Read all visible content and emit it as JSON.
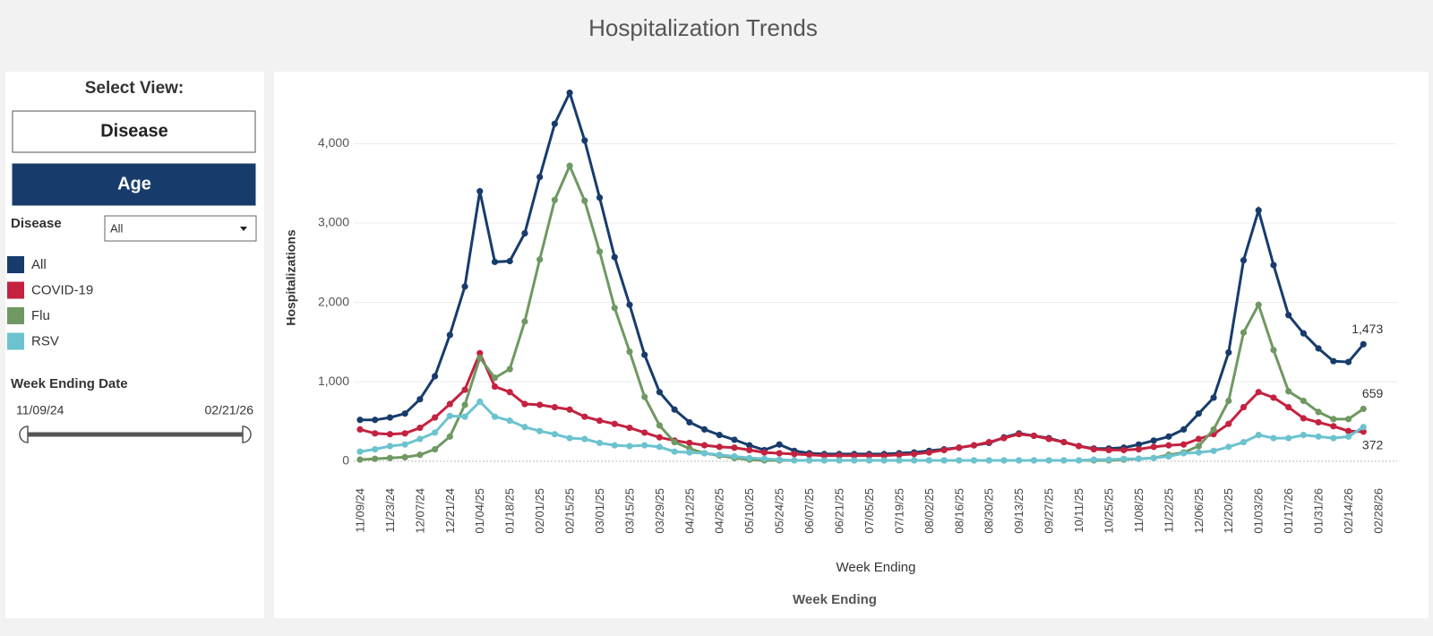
{
  "header": {
    "title": "Hospitalization Trends"
  },
  "controls": {
    "select_view_label": "Select View:",
    "buttons": [
      "Disease",
      "Age"
    ],
    "selected_button": 1,
    "filter_label": "Disease",
    "filter_value": "All",
    "date_label": "Week Ending Date",
    "date_range": [
      "11/09/24",
      "02/21/26"
    ]
  },
  "chart_data": {
    "type": "line",
    "ylabel": "Hospitalizations",
    "xlabel": "Week Ending",
    "caption": "Week Ending",
    "categories": [
      "11/09/24",
      null,
      "11/23/24",
      null,
      "12/07/24",
      null,
      "12/21/24",
      null,
      "01/04/25",
      null,
      "01/18/25",
      null,
      "02/01/25",
      null,
      "02/15/25",
      null,
      "03/01/25",
      null,
      "03/15/25",
      null,
      "03/29/25",
      null,
      "04/12/25",
      null,
      "04/26/25",
      null,
      "05/10/25",
      null,
      "05/24/25",
      null,
      "06/07/25",
      null,
      "06/21/25",
      null,
      "07/05/25",
      null,
      "07/19/25",
      null,
      "08/02/25",
      null,
      "08/16/25",
      null,
      "08/30/25",
      null,
      "09/13/25",
      null,
      "09/27/25",
      null,
      "10/11/25",
      null,
      "10/25/25",
      null,
      "11/08/25",
      null,
      "11/22/25",
      null,
      "12/06/25",
      null,
      "12/20/25",
      null,
      "01/03/26",
      null,
      "01/17/26",
      null,
      "01/31/26",
      null,
      "02/14/26",
      null,
      "02/28/26"
    ],
    "ylim": [
      -250,
      4850
    ],
    "yticks": [
      0,
      {
        "value": 1000,
        "label": "1,000"
      },
      {
        "value": 2000,
        "label": "2,000"
      },
      {
        "value": 3000,
        "label": "3,000"
      },
      {
        "value": 4000,
        "label": "4,000"
      }
    ],
    "grid": true,
    "series": [
      {
        "name": "All",
        "color": "#173c6c",
        "values": [
          520,
          520,
          550,
          600,
          780,
          1070,
          1590,
          2200,
          3400,
          2510,
          2520,
          2870,
          3580,
          4250,
          4640,
          4040,
          3320,
          2570,
          1970,
          1340,
          870,
          650,
          490,
          400,
          330,
          270,
          200,
          140,
          210,
          130,
          100,
          90,
          90,
          90,
          90,
          90,
          100,
          110,
          130,
          150,
          170,
          200,
          230,
          300,
          350,
          320,
          290,
          240,
          190,
          160,
          160,
          170,
          210,
          260,
          310,
          400,
          600,
          800,
          1370,
          2530,
          3160,
          2470,
          1840,
          1610,
          1420,
          1260,
          1250,
          1473,
          null
        ],
        "value_labels": [
          null,
          null,
          null,
          null,
          null,
          null,
          null,
          null,
          null,
          null,
          null,
          null,
          null,
          null,
          null,
          null,
          null,
          null,
          null,
          null,
          null,
          null,
          null,
          null,
          null,
          null,
          null,
          null,
          null,
          null,
          null,
          null,
          null,
          null,
          null,
          null,
          null,
          null,
          null,
          null,
          null,
          null,
          null,
          null,
          null,
          null,
          null,
          null,
          null,
          null,
          null,
          null,
          null,
          null,
          null,
          null,
          null,
          null,
          null,
          null,
          null,
          null,
          null,
          null,
          null,
          null,
          null,
          "1,473",
          null
        ]
      },
      {
        "name": "COVID-19",
        "color": "#c4223f",
        "values": [
          400,
          350,
          340,
          350,
          420,
          550,
          720,
          900,
          1360,
          940,
          870,
          720,
          710,
          680,
          650,
          560,
          510,
          470,
          420,
          360,
          300,
          260,
          230,
          200,
          180,
          170,
          140,
          110,
          100,
          90,
          80,
          70,
          70,
          70,
          70,
          70,
          80,
          90,
          110,
          140,
          170,
          200,
          240,
          290,
          340,
          320,
          280,
          240,
          190,
          150,
          140,
          140,
          150,
          180,
          200,
          210,
          280,
          340,
          470,
          680,
          870,
          800,
          680,
          540,
          490,
          440,
          380,
          372,
          null
        ],
        "value_labels": [
          null,
          null,
          null,
          null,
          null,
          null,
          null,
          null,
          null,
          null,
          null,
          null,
          null,
          null,
          null,
          null,
          null,
          null,
          null,
          null,
          null,
          null,
          null,
          null,
          null,
          null,
          null,
          null,
          null,
          null,
          null,
          null,
          null,
          null,
          null,
          null,
          null,
          null,
          null,
          null,
          null,
          null,
          null,
          null,
          null,
          null,
          null,
          null,
          null,
          null,
          null,
          null,
          null,
          null,
          null,
          null,
          null,
          null,
          null,
          null,
          null,
          null,
          null,
          null,
          null,
          null,
          null,
          "372",
          null
        ]
      },
      {
        "name": "Flu",
        "color": "#6f9862",
        "values": [
          20,
          30,
          40,
          50,
          80,
          150,
          310,
          710,
          1300,
          1050,
          1160,
          1760,
          2540,
          3290,
          3720,
          3280,
          2640,
          1930,
          1380,
          810,
          450,
          240,
          160,
          100,
          70,
          40,
          20,
          10,
          10,
          10,
          10,
          10,
          10,
          10,
          10,
          10,
          10,
          10,
          10,
          10,
          10,
          10,
          10,
          10,
          10,
          10,
          10,
          10,
          10,
          10,
          10,
          20,
          30,
          40,
          80,
          110,
          190,
          400,
          760,
          1620,
          1970,
          1400,
          880,
          760,
          620,
          530,
          530,
          659,
          null
        ],
        "value_labels": [
          null,
          null,
          null,
          null,
          null,
          null,
          null,
          null,
          null,
          null,
          null,
          null,
          null,
          null,
          null,
          null,
          null,
          null,
          null,
          null,
          null,
          null,
          null,
          null,
          null,
          null,
          null,
          null,
          null,
          null,
          null,
          null,
          null,
          null,
          null,
          null,
          null,
          null,
          null,
          null,
          null,
          null,
          null,
          null,
          null,
          null,
          null,
          null,
          null,
          null,
          null,
          null,
          null,
          null,
          null,
          null,
          null,
          null,
          null,
          null,
          null,
          null,
          null,
          null,
          null,
          null,
          null,
          "659",
          null
        ]
      },
      {
        "name": "RSV",
        "color": "#6cc3cf",
        "values": [
          120,
          150,
          190,
          210,
          280,
          360,
          570,
          560,
          750,
          560,
          510,
          430,
          380,
          340,
          290,
          280,
          230,
          200,
          190,
          200,
          180,
          120,
          110,
          100,
          80,
          60,
          40,
          30,
          20,
          10,
          10,
          10,
          10,
          10,
          10,
          10,
          10,
          10,
          10,
          10,
          10,
          10,
          10,
          10,
          10,
          10,
          10,
          10,
          10,
          20,
          20,
          30,
          30,
          40,
          60,
          100,
          110,
          130,
          180,
          240,
          330,
          290,
          290,
          330,
          310,
          290,
          310,
          430,
          null
        ]
      }
    ]
  }
}
